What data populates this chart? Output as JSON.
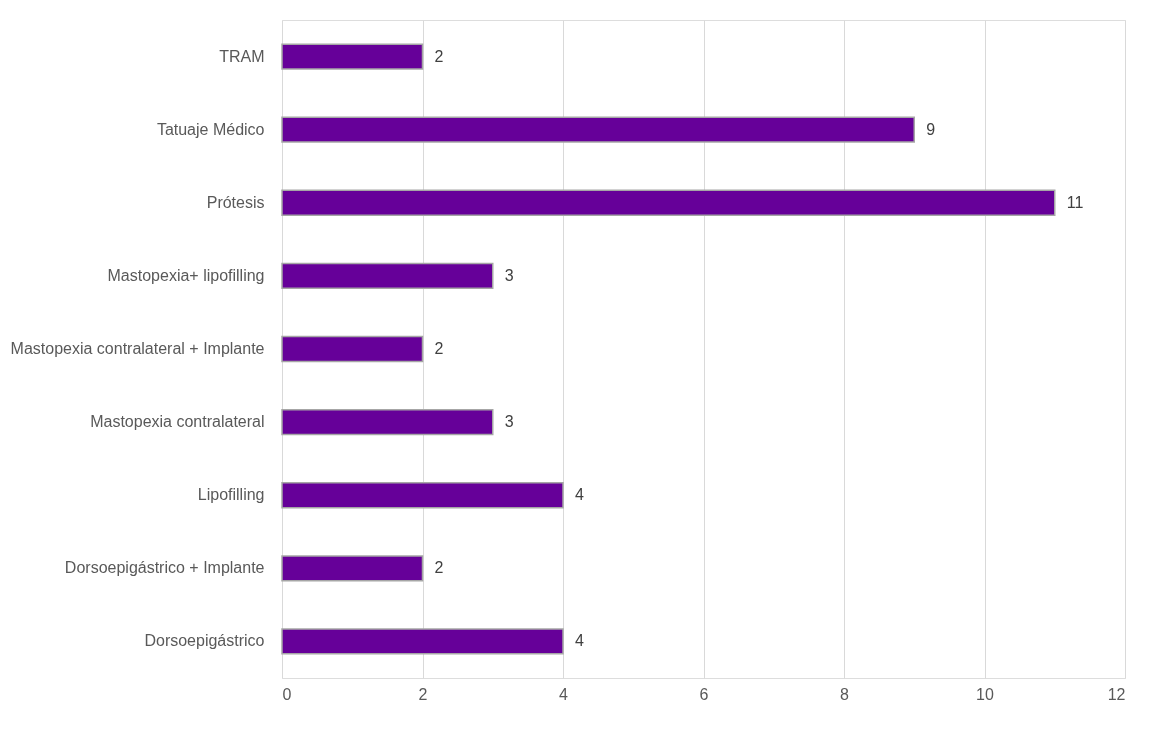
{
  "chart_data": {
    "type": "bar",
    "orientation": "horizontal",
    "categories": [
      "TRAM",
      "Tatuaje Médico",
      "Prótesis",
      "Mastopexia+ lipofilling",
      "Mastopexia contralateral + Implante",
      "Mastopexia contralateral",
      "Lipofilling",
      "Dorsoepigástrico + Implante",
      "Dorsoepigástrico"
    ],
    "values": [
      2,
      9,
      11,
      3,
      2,
      3,
      4,
      2,
      4
    ],
    "color": "#660099",
    "xlim": [
      0,
      12
    ],
    "xticks": [
      0,
      2,
      4,
      6,
      8,
      10,
      12
    ],
    "grid": "x",
    "data_labels": true
  }
}
